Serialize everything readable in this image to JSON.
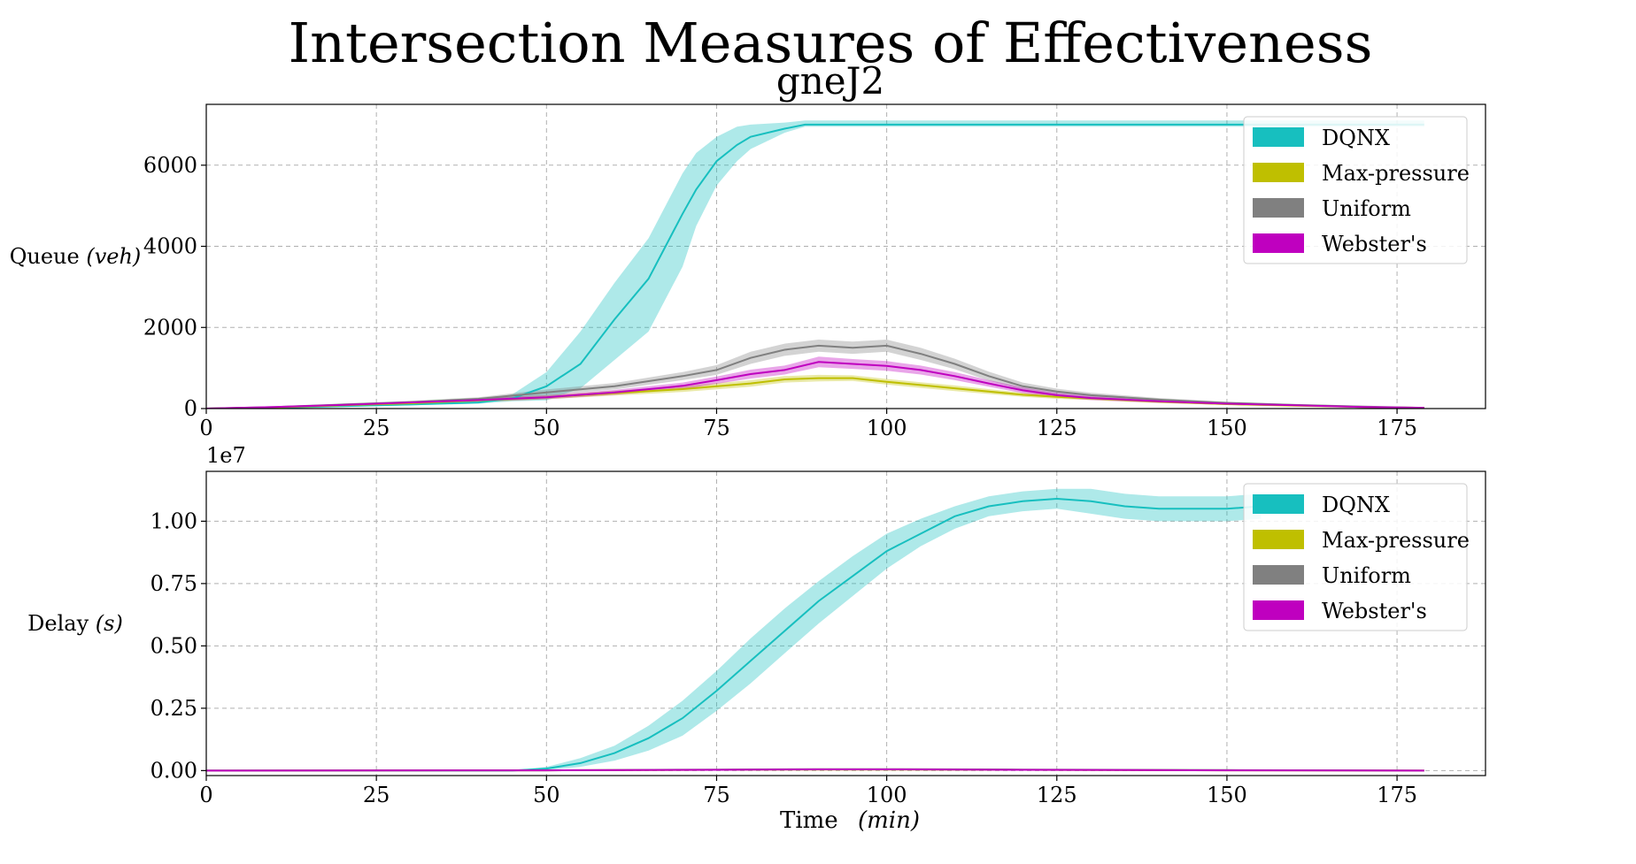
{
  "colors": {
    "DQNX": "#17bfbf",
    "Max-pressure": "#bfbf00",
    "Uniform": "#808080",
    "Webster's": "#bf00bf"
  },
  "chart_data": {
    "type": "line",
    "title": "Intersection Measures of Effectiveness",
    "subtitle": "gneJ2",
    "grid": true,
    "legend_placement": "top-right",
    "xlabel": "Time",
    "xlabel_unit": "(min)",
    "xlim": [
      0,
      188
    ],
    "xticks": [
      0,
      25,
      50,
      75,
      100,
      125,
      150,
      175
    ],
    "panels": [
      {
        "name": "queue",
        "ylabel": "Queue",
        "ylabel_unit": "(veh)",
        "ylim": [
          0,
          7500
        ],
        "yticks": [
          0,
          2000,
          4000,
          6000
        ],
        "ytick_labels": [
          "0",
          "2000",
          "4000",
          "6000"
        ],
        "offset_label": "",
        "legend": [
          "DQNX",
          "Max-pressure",
          "Uniform",
          "Webster's"
        ],
        "series": [
          {
            "name": "DQNX",
            "x": [
              0,
              10,
              20,
              30,
              40,
              45,
              50,
              55,
              60,
              65,
              70,
              72,
              75,
              78,
              80,
              85,
              88,
              90,
              100,
              110,
              120,
              130,
              140,
              150,
              155,
              160,
              165,
              170,
              175,
              179
            ],
            "mean": [
              0,
              20,
              60,
              100,
              150,
              250,
              550,
              1100,
              2200,
              3200,
              4800,
              5400,
              6100,
              6500,
              6700,
              6900,
              7000,
              7000,
              7000,
              7000,
              7000,
              7000,
              7000,
              7000,
              7000,
              7000,
              7000,
              7000,
              7000,
              7000
            ],
            "lower": [
              0,
              10,
              40,
              80,
              120,
              180,
              200,
              500,
              1200,
              1900,
              3500,
              4500,
              5500,
              6100,
              6400,
              6800,
              6950,
              6950,
              6950,
              6950,
              6950,
              6950,
              6950,
              6950,
              6950,
              6950,
              6950,
              6950,
              6950,
              6950
            ],
            "upper": [
              0,
              30,
              80,
              120,
              200,
              350,
              900,
              1900,
              3100,
              4200,
              5800,
              6300,
              6700,
              6950,
              7000,
              7050,
              7100,
              7100,
              7100,
              7100,
              7100,
              7100,
              7100,
              7100,
              7100,
              7100,
              7100,
              7100,
              7100,
              7100
            ]
          },
          {
            "name": "Max-pressure",
            "x": [
              0,
              10,
              20,
              30,
              40,
              50,
              60,
              70,
              80,
              85,
              90,
              95,
              100,
              105,
              110,
              115,
              120,
              125,
              130,
              140,
              150,
              160,
              170,
              179
            ],
            "mean": [
              0,
              30,
              80,
              130,
              200,
              280,
              380,
              480,
              620,
              720,
              750,
              750,
              660,
              580,
              500,
              420,
              340,
              290,
              250,
              170,
              110,
              70,
              40,
              20
            ],
            "lower": [
              0,
              20,
              60,
              100,
              160,
              230,
              320,
              410,
              540,
              640,
              670,
              680,
              590,
              510,
              430,
              360,
              290,
              240,
              210,
              140,
              90,
              55,
              30,
              10
            ],
            "upper": [
              0,
              40,
              100,
              160,
              240,
              330,
              440,
              550,
              700,
              800,
              830,
              820,
              730,
              650,
              570,
              480,
              390,
              340,
              290,
              200,
              130,
              85,
              50,
              30
            ]
          },
          {
            "name": "Uniform",
            "x": [
              0,
              10,
              20,
              30,
              40,
              50,
              60,
              70,
              75,
              80,
              85,
              90,
              95,
              100,
              105,
              110,
              115,
              120,
              125,
              130,
              140,
              150,
              160,
              170,
              179
            ],
            "mean": [
              0,
              40,
              100,
              160,
              240,
              400,
              550,
              800,
              950,
              1250,
              1450,
              1550,
              1500,
              1550,
              1350,
              1100,
              800,
              550,
              420,
              330,
              220,
              140,
              90,
              50,
              20
            ],
            "lower": [
              0,
              30,
              80,
              130,
              200,
              330,
              470,
              700,
              830,
              1100,
              1300,
              1400,
              1350,
              1400,
              1200,
              970,
              690,
              460,
              350,
              270,
              180,
              110,
              70,
              35,
              10
            ],
            "upper": [
              0,
              50,
              120,
              190,
              280,
              470,
              630,
              900,
              1070,
              1400,
              1600,
              1700,
              1650,
              1700,
              1500,
              1230,
              910,
              640,
              490,
              390,
              260,
              170,
              110,
              65,
              30
            ]
          },
          {
            "name": "Webster's",
            "x": [
              0,
              10,
              20,
              30,
              40,
              50,
              60,
              70,
              75,
              80,
              85,
              90,
              95,
              100,
              105,
              110,
              115,
              120,
              125,
              130,
              140,
              150,
              160,
              170,
              179
            ],
            "mean": [
              0,
              40,
              90,
              150,
              210,
              280,
              400,
              560,
              700,
              850,
              950,
              1150,
              1100,
              1050,
              950,
              800,
              620,
              450,
              330,
              260,
              180,
              120,
              80,
              40,
              20
            ],
            "lower": [
              0,
              30,
              70,
              120,
              170,
              230,
              340,
              480,
              610,
              740,
              840,
              1020,
              980,
              930,
              840,
              700,
              540,
              380,
              270,
              210,
              140,
              90,
              60,
              25,
              10
            ],
            "upper": [
              0,
              50,
              110,
              180,
              250,
              330,
              460,
              640,
              790,
              960,
              1060,
              1280,
              1220,
              1170,
              1060,
              900,
              700,
              520,
              390,
              310,
              220,
              150,
              100,
              55,
              30
            ]
          }
        ]
      },
      {
        "name": "delay",
        "ylabel": "Delay",
        "ylabel_unit": "(s)",
        "ylim": [
          -0.02,
          1.2
        ],
        "yticks": [
          0,
          0.25,
          0.5,
          0.75,
          1.0
        ],
        "ytick_labels": [
          "0.00",
          "0.25",
          "0.50",
          "0.75",
          "1.00"
        ],
        "offset_label": "1e7",
        "legend": [
          "DQNX",
          "Max-pressure",
          "Uniform",
          "Webster's"
        ],
        "series": [
          {
            "name": "DQNX",
            "x": [
              0,
              45,
              50,
              55,
              60,
              65,
              70,
              75,
              80,
              85,
              90,
              95,
              100,
              105,
              110,
              115,
              120,
              125,
              130,
              135,
              140,
              145,
              150,
              155
            ],
            "mean": [
              0,
              0,
              0.008,
              0.03,
              0.07,
              0.13,
              0.21,
              0.32,
              0.44,
              0.56,
              0.68,
              0.78,
              0.88,
              0.95,
              1.02,
              1.06,
              1.08,
              1.09,
              1.08,
              1.06,
              1.05,
              1.05,
              1.05,
              1.06
            ],
            "lower": [
              0,
              0,
              0.002,
              0.015,
              0.04,
              0.08,
              0.14,
              0.24,
              0.35,
              0.47,
              0.59,
              0.7,
              0.81,
              0.9,
              0.97,
              1.02,
              1.04,
              1.05,
              1.03,
              1.01,
              1.0,
              1.0,
              1.0,
              1.01
            ],
            "upper": [
              0,
              0,
              0.015,
              0.05,
              0.1,
              0.18,
              0.28,
              0.4,
              0.53,
              0.65,
              0.76,
              0.86,
              0.95,
              1.01,
              1.06,
              1.1,
              1.12,
              1.13,
              1.13,
              1.11,
              1.1,
              1.1,
              1.1,
              1.11
            ]
          },
          {
            "name": "Max-pressure",
            "x": [
              0,
              50,
              75,
              90,
              100,
              120,
              150,
              179
            ],
            "mean": [
              0,
              0.001,
              0.003,
              0.004,
              0.004,
              0.003,
              0.001,
              0
            ],
            "lower": [
              0,
              0.0005,
              0.002,
              0.003,
              0.003,
              0.002,
              0.0005,
              0
            ],
            "upper": [
              0,
              0.0015,
              0.004,
              0.005,
              0.005,
              0.004,
              0.0015,
              0
            ]
          },
          {
            "name": "Uniform",
            "x": [
              0,
              50,
              75,
              90,
              100,
              120,
              150,
              179
            ],
            "mean": [
              0,
              0.001,
              0.004,
              0.006,
              0.006,
              0.004,
              0.002,
              0
            ],
            "lower": [
              0,
              0.0005,
              0.003,
              0.005,
              0.005,
              0.003,
              0.001,
              0
            ],
            "upper": [
              0,
              0.0015,
              0.005,
              0.007,
              0.007,
              0.005,
              0.003,
              0
            ]
          },
          {
            "name": "Webster's",
            "x": [
              0,
              50,
              75,
              90,
              100,
              120,
              150,
              179
            ],
            "mean": [
              0,
              0.001,
              0.003,
              0.005,
              0.005,
              0.003,
              0.001,
              0
            ],
            "lower": [
              0,
              0.0005,
              0.002,
              0.004,
              0.004,
              0.002,
              0.0005,
              0
            ],
            "upper": [
              0,
              0.0015,
              0.004,
              0.006,
              0.006,
              0.004,
              0.0015,
              0
            ]
          }
        ]
      }
    ]
  }
}
